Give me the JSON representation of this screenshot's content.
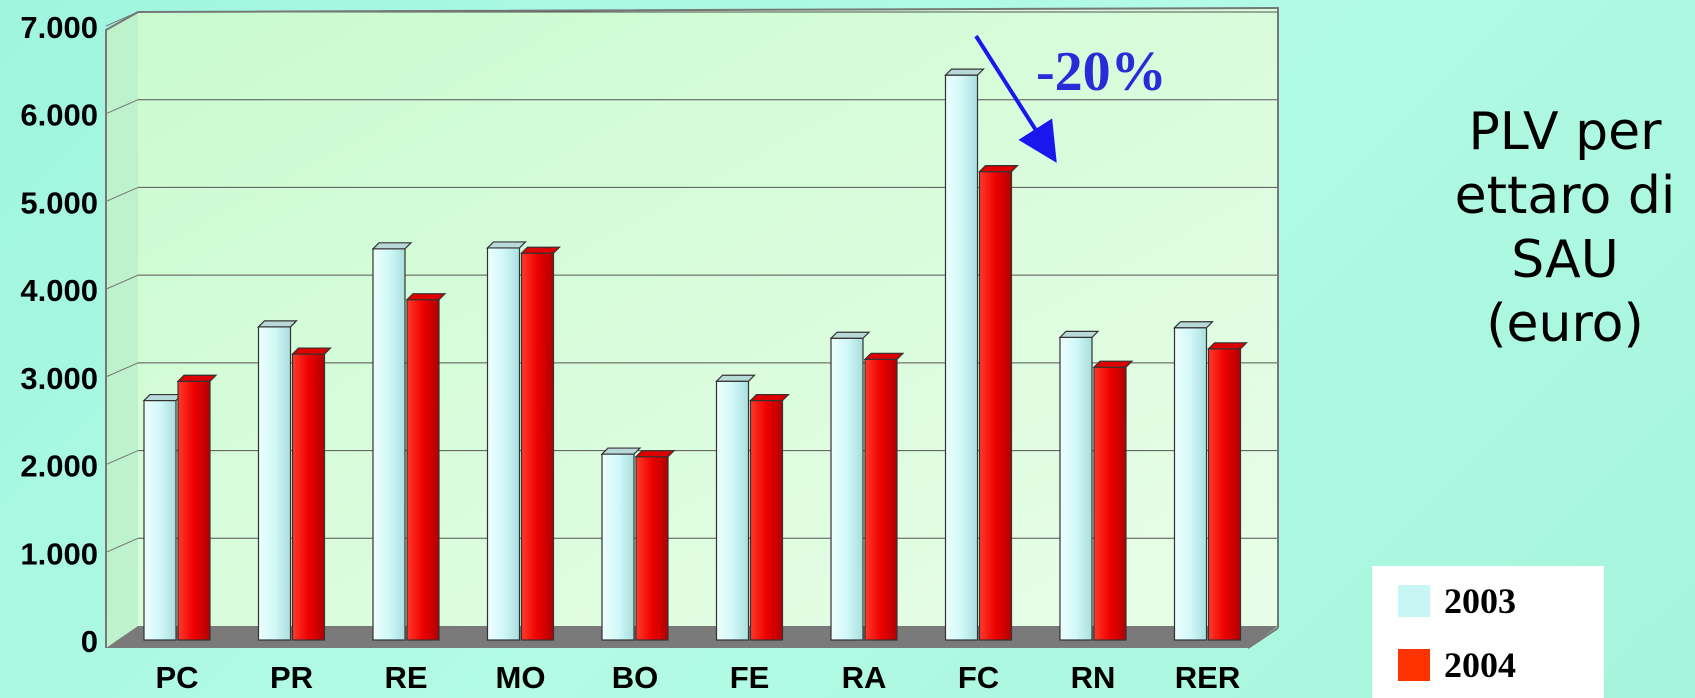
{
  "chart_data": {
    "type": "bar",
    "categories": [
      "PC",
      "PR",
      "RE",
      "MO",
      "BO",
      "FE",
      "RA",
      "FC",
      "RN",
      "RER"
    ],
    "series": [
      {
        "name": "2003",
        "color": "#c8f6f4",
        "values": [
          2730,
          3570,
          4460,
          4470,
          2120,
          2950,
          3440,
          6440,
          3450,
          3560
        ]
      },
      {
        "name": "2004",
        "color": "#ee0000",
        "values": [
          2950,
          3260,
          3880,
          4410,
          2090,
          2730,
          3200,
          5340,
          3110,
          3320
        ]
      }
    ],
    "ylim": [
      0,
      7000
    ],
    "yticks": [
      "0",
      "1.000",
      "2.000",
      "3.000",
      "4.000",
      "5.000",
      "6.000",
      "7.000"
    ],
    "grid": true,
    "legend_position": "bottom-right",
    "annotation": {
      "text": "-20%",
      "color": "#2a2ad8"
    }
  },
  "side_title": [
    "PLV per",
    "ettaro di",
    "SAU",
    "(euro)"
  ],
  "legend": [
    {
      "label": "2003",
      "color": "#c8f6f4"
    },
    {
      "label": "2004",
      "color": "#ff3300"
    }
  ]
}
